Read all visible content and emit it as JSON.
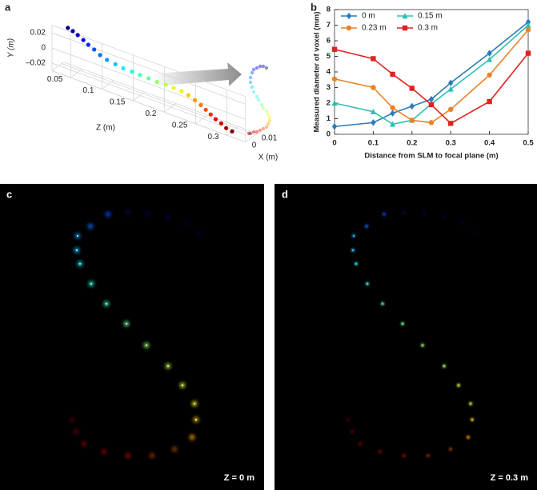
{
  "panel_labels": [
    "a",
    "b",
    "c",
    "d"
  ],
  "chart_data": [
    {
      "type": "scatter3d",
      "xlabel": "X (m)",
      "ylabel": "Y (m)",
      "zlabel": "Z (m)",
      "colormap": "jet",
      "x": [
        0.01,
        0.008,
        0.006,
        0.004,
        0.002,
        0.001,
        0.0,
        0.0,
        0.001,
        0.002,
        0.004,
        0.005,
        0.007,
        0.008,
        0.01,
        0.011,
        0.012,
        0.012,
        0.011,
        0.01,
        0.008,
        0.006,
        0.004,
        0.002,
        0.0,
        -0.001
      ],
      "y": [
        0.02,
        0.021,
        0.021,
        0.02,
        0.019,
        0.017,
        0.014,
        0.011,
        0.008,
        0.005,
        0.002,
        0.0,
        -0.003,
        -0.005,
        -0.007,
        -0.009,
        -0.011,
        -0.013,
        -0.015,
        -0.017,
        -0.018,
        -0.019,
        -0.02,
        -0.02,
        -0.021,
        -0.021
      ],
      "z": [
        0.03,
        0.041,
        0.052,
        0.064,
        0.075,
        0.086,
        0.097,
        0.108,
        0.12,
        0.131,
        0.142,
        0.153,
        0.164,
        0.176,
        0.187,
        0.198,
        0.209,
        0.22,
        0.232,
        0.243,
        0.254,
        0.265,
        0.276,
        0.288,
        0.299,
        0.31
      ],
      "xlim": [
        0,
        0.012
      ],
      "ylim": [
        -0.03,
        0.03
      ],
      "zlim": [
        0.02,
        0.33
      ],
      "xticks": [
        0,
        0.01
      ],
      "yticks": [
        {
          "value": -0.02,
          "label": "–0.02"
        },
        0,
        0.02
      ],
      "zticks": [
        0.05,
        0.1,
        0.15,
        0.2,
        0.25,
        0.3
      ]
    },
    {
      "type": "line",
      "xlabel": "Distance from SLM to focal plane (m)",
      "ylabel": "Measured  diameter of voxel (mm)",
      "x": [
        0,
        0.1,
        0.15,
        0.2,
        0.25,
        0.3,
        0.4,
        0.5
      ],
      "series": [
        {
          "name": "0 m",
          "color": "#2b7bba",
          "marker": "diamond",
          "values": [
            0.5,
            0.75,
            1.35,
            1.8,
            2.25,
            3.3,
            5.2,
            7.2
          ]
        },
        {
          "name": "0.15 m",
          "color": "#2fbfae",
          "marker": "triangle",
          "values": [
            2.0,
            1.45,
            0.65,
            0.9,
            1.95,
            2.9,
            4.8,
            7.0
          ]
        },
        {
          "name": "0.23 m",
          "color": "#e8832a",
          "marker": "circle",
          "values": [
            3.55,
            3.0,
            1.7,
            0.9,
            0.75,
            1.6,
            3.8,
            6.7
          ]
        },
        {
          "name": "0.3 m",
          "color": "#e3211f",
          "marker": "square",
          "values": [
            5.45,
            4.85,
            3.85,
            2.95,
            1.9,
            0.7,
            2.1,
            5.2
          ]
        }
      ],
      "xlim": [
        0,
        0.5
      ],
      "ylim": [
        0,
        8
      ],
      "xticks": [
        0,
        0.1,
        0.2,
        0.3,
        0.4,
        0.5
      ],
      "yticks": [
        0,
        1,
        2,
        3,
        4,
        5,
        6,
        7,
        8
      ],
      "legend": "top-left"
    }
  ],
  "images": [
    {
      "caption": "Z = 0 m"
    },
    {
      "caption": "Z = 0.3 m"
    }
  ]
}
